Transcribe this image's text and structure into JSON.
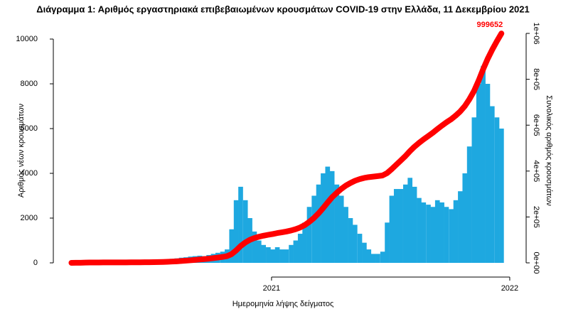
{
  "chart_data": {
    "type": "combo",
    "title": "Διάγραμμα 1: Αριθμός εργαστηριακά επιβεβαιωμένων κρουσμάτων COVID-19 στην Ελλάδα, 11 Δεκεμβρίου 2021",
    "x_label": "Ημερομηνία λήψης δείγματος",
    "y_label": "Αριθμός νέων κρουσμάτων",
    "y2_label": "Συνολικός αριθμός κρουσμάτων",
    "annotation": "999652",
    "x": [
      2020.16,
      2020.179,
      2020.198,
      2020.218,
      2020.237,
      2020.256,
      2020.275,
      2020.294,
      2020.314,
      2020.333,
      2020.352,
      2020.371,
      2020.39,
      2020.41,
      2020.429,
      2020.448,
      2020.467,
      2020.486,
      2020.506,
      2020.525,
      2020.544,
      2020.563,
      2020.582,
      2020.602,
      2020.621,
      2020.64,
      2020.659,
      2020.678,
      2020.698,
      2020.717,
      2020.736,
      2020.755,
      2020.774,
      2020.794,
      2020.813,
      2020.832,
      2020.851,
      2020.87,
      2020.89,
      2020.909,
      2020.928,
      2020.947,
      2020.966,
      2020.986,
      2021.005,
      2021.024,
      2021.043,
      2021.062,
      2021.082,
      2021.101,
      2021.12,
      2021.139,
      2021.158,
      2021.178,
      2021.197,
      2021.216,
      2021.235,
      2021.254,
      2021.274,
      2021.293,
      2021.312,
      2021.331,
      2021.35,
      2021.37,
      2021.389,
      2021.408,
      2021.427,
      2021.446,
      2021.466,
      2021.485,
      2021.504,
      2021.523,
      2021.542,
      2021.562,
      2021.581,
      2021.6,
      2021.619,
      2021.638,
      2021.658,
      2021.677,
      2021.696,
      2021.715,
      2021.734,
      2021.754,
      2021.773,
      2021.792,
      2021.811,
      2021.83,
      2021.85,
      2021.869,
      2021.888,
      2021.907,
      2021.926,
      2021.946,
      2021.965
    ],
    "series": [
      {
        "type": "bar",
        "color": "#1ea8e0",
        "values": [
          10,
          30,
          60,
          80,
          60,
          40,
          20,
          15,
          10,
          10,
          10,
          10,
          15,
          15,
          20,
          25,
          30,
          40,
          50,
          60,
          80,
          120,
          180,
          200,
          230,
          250,
          280,
          300,
          320,
          300,
          350,
          400,
          450,
          500,
          600,
          1500,
          2800,
          3400,
          2800,
          2000,
          1400,
          1000,
          800,
          700,
          600,
          700,
          600,
          600,
          800,
          1000,
          1300,
          1800,
          2500,
          3000,
          3500,
          4000,
          4300,
          4100,
          3500,
          3000,
          2500,
          2000,
          1700,
          1300,
          900,
          600,
          400,
          400,
          500,
          1800,
          3000,
          3300,
          3300,
          3500,
          3800,
          3400,
          2900,
          2700,
          2600,
          2500,
          2800,
          2700,
          2500,
          2400,
          2800,
          3200,
          4000,
          5200,
          6500,
          8000,
          8800,
          8000,
          7000,
          6500,
          6000
        ]
      },
      {
        "type": "line",
        "axis": "y2",
        "color": "#ff0000",
        "values": [
          57,
          227,
          567,
          1021,
          1361,
          1588,
          1701,
          1786,
          1843,
          1899,
          1956,
          2013,
          2098,
          2183,
          2296,
          2438,
          2608,
          2835,
          3119,
          3459,
          3912,
          4593,
          5613,
          6747,
          8051,
          9469,
          11057,
          12758,
          14572,
          16273,
          18257,
          20525,
          23077,
          25912,
          29314,
          37819,
          53695,
          72973,
          88849,
          100189,
          108127,
          113797,
          118333,
          122302,
          125704,
          129673,
          133075,
          136477,
          141013,
          146683,
          154054,
          164260,
          178435,
          195445,
          215290,
          237970,
          262351,
          285598,
          305443,
          322453,
          336628,
          347968,
          357607,
          364978,
          370081,
          373483,
          375751,
          378019,
          380854,
          391060,
          408070,
          426781,
          445492,
          465337,
          486883,
          506161,
          522604,
          537913,
          552655,
          566830,
          582706,
          598015,
          612190,
          625798,
          641674,
          659818,
          682498,
          712061,
          748837,
          793197,
          843093,
          888453,
          928143,
          965998,
          999652
        ]
      }
    ],
    "xlim": [
      2020.084,
      2022.033
    ],
    "xticks": [
      2021,
      2022
    ],
    "ylim": [
      -476,
      10476
    ],
    "yticks": [
      0,
      2000,
      4000,
      6000,
      8000,
      10000
    ],
    "y2lim": [
      -46440,
      1021700
    ],
    "y2ticks": [
      {
        "value": 0,
        "label": "0e+00"
      },
      {
        "value": 200000,
        "label": "2e+05"
      },
      {
        "value": 400000,
        "label": "4e+05"
      },
      {
        "value": 600000,
        "label": "6e+05"
      },
      {
        "value": 800000,
        "label": "8e+05"
      },
      {
        "value": 1000000,
        "label": "1e+06"
      }
    ]
  }
}
